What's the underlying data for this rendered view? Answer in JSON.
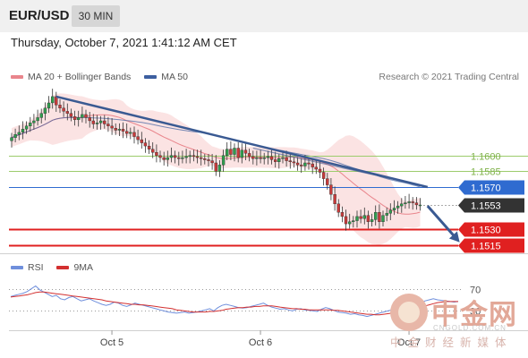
{
  "header": {
    "symbol": "EUR/USD",
    "timeframe": "30 MIN"
  },
  "datetime": "Thursday, October 7, 2021 1:41:12 AM CET",
  "copyright": "Research © 2021 Trading Central",
  "colors": {
    "ma20": "#e9858c",
    "ma50": "#3d5fa0",
    "band_fill": "#f9dada",
    "support": "#e02020",
    "pivot": "#2f6bd0",
    "resistance": "#9ccc6c",
    "rsi": "#6f8fdc",
    "rsi_ma": "#d33030",
    "trendline": "#3a5a92",
    "candle_up": "#2e9e4e",
    "candle_down": "#c83a3a",
    "current_price": "#333333"
  },
  "icons": {
    "watermark": "cngold-logo-icon"
  },
  "watermark": {
    "title": "中金网",
    "url": "CNGOLD.COM.CN",
    "sub": "中金财经新媒体"
  },
  "chart_data": [
    {
      "type": "candlestick",
      "title": "",
      "xlabel": "",
      "ylabel": "",
      "x_ticks": [
        {
          "label": "Oct 5",
          "bar": 27
        },
        {
          "label": "Oct 6",
          "bar": 67
        },
        {
          "label": "Oct 7",
          "bar": 107
        }
      ],
      "ylim": [
        1.1507,
        1.1667
      ],
      "legend": [
        {
          "name": "MA 20 + Bollinger Bands",
          "color": "#e9858c"
        },
        {
          "name": "MA 50",
          "color": "#3d5fa0"
        }
      ],
      "legend_position": "top-left",
      "levels": [
        {
          "label": "1.1600",
          "value": 1.16,
          "role": "resistance"
        },
        {
          "label": "1.1585",
          "value": 1.1585,
          "role": "resistance"
        },
        {
          "label": "1.1570",
          "value": 1.157,
          "role": "pivot"
        },
        {
          "label": "1.1553",
          "value": 1.1553,
          "role": "current_price"
        },
        {
          "label": "1.1530",
          "value": 1.153,
          "role": "support"
        },
        {
          "label": "1.1515",
          "value": 1.1515,
          "role": "support"
        }
      ],
      "closes": [
        1.1617,
        1.162,
        1.1622,
        1.1625,
        1.1628,
        1.1631,
        1.1633,
        1.1636,
        1.164,
        1.1645,
        1.165,
        1.1656,
        1.1648,
        1.1645,
        1.1642,
        1.164,
        1.1637,
        1.1634,
        1.1636,
        1.1639,
        1.1636,
        1.1633,
        1.163,
        1.1631,
        1.1633,
        1.163,
        1.1628,
        1.1626,
        1.1624,
        1.1625,
        1.1623,
        1.1621,
        1.1622,
        1.1618,
        1.1615,
        1.1612,
        1.1609,
        1.1606,
        1.1603,
        1.16,
        1.1598,
        1.1596,
        1.1598,
        1.16,
        1.1598,
        1.1597,
        1.1598,
        1.1599,
        1.16,
        1.1599,
        1.1598,
        1.1597,
        1.1596,
        1.1595,
        1.1593,
        1.1585,
        1.1591,
        1.16,
        1.1606,
        1.1601,
        1.1607,
        1.1598,
        1.1605,
        1.1602,
        1.1599,
        1.1597,
        1.1598,
        1.1597,
        1.1598,
        1.1599,
        1.1596,
        1.1594,
        1.1597,
        1.1598,
        1.1595,
        1.1594,
        1.1593,
        1.1591,
        1.159,
        1.1593,
        1.1592,
        1.1589,
        1.1587,
        1.1584,
        1.1578,
        1.1572,
        1.1563,
        1.1554,
        1.1546,
        1.1542,
        1.1535,
        1.1537,
        1.1538,
        1.1542,
        1.154,
        1.1543,
        1.1537,
        1.1539,
        1.1546,
        1.1537,
        1.1543,
        1.1545,
        1.1548,
        1.155,
        1.1552,
        1.1554,
        1.1555,
        1.1556,
        1.1555,
        1.1553,
        1.1553
      ],
      "trendlines": [
        {
          "from": {
            "bar": 12,
            "value": 1.1656
          },
          "to": {
            "bar": 112,
            "value": 1.157
          }
        },
        {
          "from": {
            "bar": 65,
            "value": 1.1607
          },
          "to": {
            "bar": 106,
            "value": 1.1575
          }
        }
      ],
      "projection": {
        "from": {
          "bar": 112,
          "value": 1.1552
        },
        "to": {
          "bar": 120,
          "value": 1.152
        }
      }
    },
    {
      "type": "line",
      "title": "",
      "legend": [
        {
          "name": "RSI",
          "color": "#6f8fdc"
        },
        {
          "name": "9MA",
          "color": "#d33030"
        }
      ],
      "ylim": [
        0,
        100
      ],
      "levels": [
        {
          "label": "70",
          "value": 70
        },
        {
          "label": "30",
          "value": 30
        }
      ],
      "rsi": [
        56,
        58,
        60,
        62,
        65,
        70,
        75,
        68,
        64,
        60,
        56,
        58,
        52,
        50,
        54,
        56,
        52,
        48,
        50,
        52,
        48,
        45,
        42,
        40,
        42,
        46,
        44,
        40,
        38,
        41,
        44,
        42,
        40,
        38,
        36,
        34,
        32,
        30,
        28,
        27,
        26,
        27,
        28,
        26,
        27,
        28,
        30,
        32,
        34,
        30,
        36,
        40,
        42,
        40,
        38,
        36,
        35,
        36,
        38,
        40,
        42,
        44,
        40,
        37,
        35,
        33,
        34,
        32,
        30,
        33,
        34,
        32,
        31,
        30,
        29,
        33,
        36,
        34,
        31,
        28,
        27,
        26,
        24,
        25,
        23,
        22,
        20,
        22,
        24,
        26,
        28,
        30,
        32,
        31,
        30,
        34,
        38,
        40,
        42,
        45,
        48,
        50,
        52,
        50,
        49,
        48,
        47,
        46,
        47
      ],
      "ma9": [
        55,
        56,
        57,
        58,
        59,
        61,
        63,
        64,
        64,
        63,
        62,
        61,
        60,
        59,
        58,
        57,
        56,
        55,
        54,
        53,
        52,
        51,
        50,
        48,
        47,
        46,
        45,
        44,
        43,
        42,
        42,
        41,
        41,
        40,
        39,
        38,
        37,
        36,
        35,
        34,
        32,
        31,
        30,
        29,
        28,
        28,
        28,
        28,
        29,
        29,
        30,
        31,
        33,
        34,
        35,
        36,
        36,
        37,
        37,
        38,
        38,
        39,
        39,
        39,
        38,
        37,
        36,
        35,
        34,
        34,
        33,
        33,
        32,
        32,
        32,
        32,
        32,
        32,
        31,
        31,
        30,
        29,
        28,
        27,
        26,
        25,
        24,
        24,
        23,
        23,
        24,
        25,
        26,
        27,
        28,
        29,
        31,
        33,
        35,
        37,
        39,
        41,
        43,
        45,
        46,
        47,
        47,
        47,
        47
      ]
    }
  ]
}
